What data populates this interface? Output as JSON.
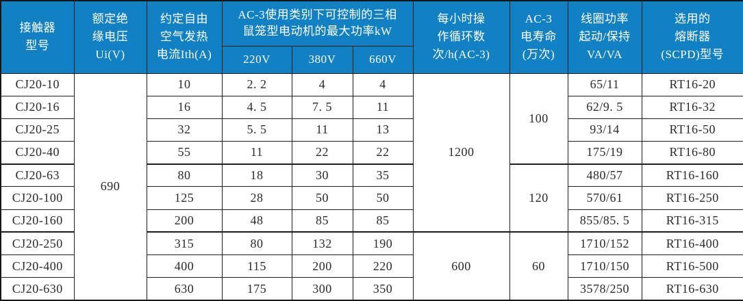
{
  "colors": {
    "header_bg": "#1281c4",
    "header_text": "#ffffff",
    "border": "#1c1c1c",
    "body_text": "#2a2a2a",
    "body_bg": "#ffffff"
  },
  "table": {
    "columns": [
      {
        "id": "model",
        "label": "接触器\n型号"
      },
      {
        "id": "ui",
        "label": "额定绝\n缘电压\nUi(V)"
      },
      {
        "id": "ith",
        "label": "约定自由\n空气发热\n电流Ith(A)"
      },
      {
        "id": "power",
        "label": "AC-3使用类别下可控制的三相\n鼠笼型电动机的最大功率kW",
        "children": [
          "220V",
          "380V",
          "660V"
        ]
      },
      {
        "id": "cycles",
        "label": "每小时操\n作循环数\n次/h(AC-3)"
      },
      {
        "id": "life",
        "label": "AC-3\n电寿命\n(万次)"
      },
      {
        "id": "coil",
        "label": "线圈功率\n起动/保持\nVA/VA"
      },
      {
        "id": "fuse",
        "label": "选用的\n熔断器\n(SCPD)型号"
      }
    ],
    "col_order": [
      "model",
      "ui",
      "ith",
      "p220",
      "p380",
      "p660",
      "cycles",
      "life",
      "coil",
      "fuse"
    ],
    "rows": [
      {
        "model": "CJ20-10",
        "ith": "10",
        "p220": "2. 2",
        "p380": "4",
        "p660": "4",
        "coil": "65/11",
        "fuse": "RT16-20"
      },
      {
        "model": "CJ20-16",
        "ith": "16",
        "p220": "4. 5",
        "p380": "7. 5",
        "p660": "11",
        "coil": "62/9. 5",
        "fuse": "RT16-32"
      },
      {
        "model": "CJ20-25",
        "ith": "32",
        "p220": "5. 5",
        "p380": "11",
        "p660": "13",
        "coil": "93/14",
        "fuse": "RT16-50"
      },
      {
        "model": "CJ20-40",
        "ith": "55",
        "p220": "11",
        "p380": "22",
        "p660": "22",
        "coil": "175/19",
        "fuse": "RT16-80"
      },
      {
        "model": "CJ20-63",
        "ith": "80",
        "p220": "18",
        "p380": "30",
        "p660": "35",
        "coil": "480/57",
        "fuse": "RT16-160"
      },
      {
        "model": "CJ20-100",
        "ith": "125",
        "p220": "28",
        "p380": "50",
        "p660": "50",
        "coil": "570/61",
        "fuse": "RT16-250"
      },
      {
        "model": "CJ20-160",
        "ith": "200",
        "p220": "48",
        "p380": "85",
        "p660": "85",
        "coil": "855/85. 5",
        "fuse": "RT16-315"
      },
      {
        "model": "CJ20-250",
        "ith": "315",
        "p220": "80",
        "p380": "132",
        "p660": "190",
        "coil": "1710/152",
        "fuse": "RT16-400"
      },
      {
        "model": "CJ20-400",
        "ith": "400",
        "p220": "115",
        "p380": "200",
        "p660": "220",
        "coil": "1710/150",
        "fuse": "RT16-500"
      },
      {
        "model": "CJ20-630",
        "ith": "630",
        "p220": "175",
        "p380": "300",
        "p660": "350",
        "coil": "3578/250",
        "fuse": "RT16-630"
      }
    ],
    "merges": [
      {
        "col": "ui",
        "row": 0,
        "span": 10,
        "value": "690"
      },
      {
        "col": "cycles",
        "row": 0,
        "span": 7,
        "value": "1200"
      },
      {
        "col": "cycles",
        "row": 7,
        "span": 3,
        "value": "600"
      },
      {
        "col": "life",
        "row": 0,
        "span": 4,
        "value": "100"
      },
      {
        "col": "life",
        "row": 4,
        "span": 3,
        "value": "120"
      },
      {
        "col": "life",
        "row": 7,
        "span": 3,
        "value": "60"
      }
    ]
  }
}
